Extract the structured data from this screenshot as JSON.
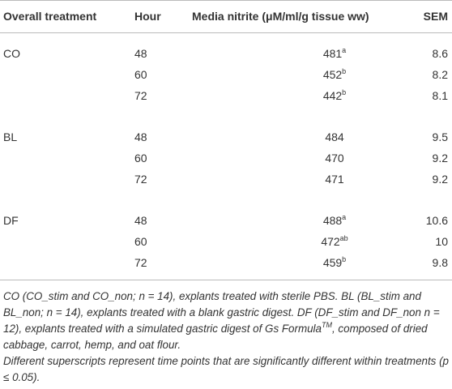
{
  "table": {
    "header": [
      "Overall treatment",
      "Hour",
      "Media nitrite (μM/ml/g tissue ww)",
      "SEM"
    ],
    "groups": [
      {
        "treatment": "CO",
        "rows": [
          {
            "hour": 48,
            "nitrite": 481,
            "sup": "a",
            "sem": 8.6
          },
          {
            "hour": 60,
            "nitrite": 452,
            "sup": "b",
            "sem": 8.2
          },
          {
            "hour": 72,
            "nitrite": 442,
            "sup": "b",
            "sem": 8.1
          }
        ]
      },
      {
        "treatment": "BL",
        "rows": [
          {
            "hour": 48,
            "nitrite": 484,
            "sem": 9.5
          },
          {
            "hour": 60,
            "nitrite": 470,
            "sem": 9.2
          },
          {
            "hour": 72,
            "nitrite": 471,
            "sem": 9.2
          }
        ]
      },
      {
        "treatment": "DF",
        "rows": [
          {
            "hour": 48,
            "nitrite": 488,
            "sup": "a",
            "sem": 10.6
          },
          {
            "hour": 60,
            "nitrite": 472,
            "sup": "ab",
            "sem": 10
          },
          {
            "hour": 72,
            "nitrite": 459,
            "sup": "b",
            "sem": 9.8
          }
        ]
      }
    ]
  },
  "footnote": {
    "text1": "CO (CO_stim and CO_non; n = 14), explants treated with sterile PBS. BL (BL_stim and BL_non; n = 14), explants treated with a blank gastric digest. DF (DF_stim and DF_non n = 12), explants treated with a simulated gastric digest of Gs Formula",
    "sup": "TM",
    "text2": ", composed of dried cabbage, carrot, hemp, and oat flour.",
    "note": "Different superscripts represent time points that are significantly different within treatments (p ≤ 0.05)."
  }
}
